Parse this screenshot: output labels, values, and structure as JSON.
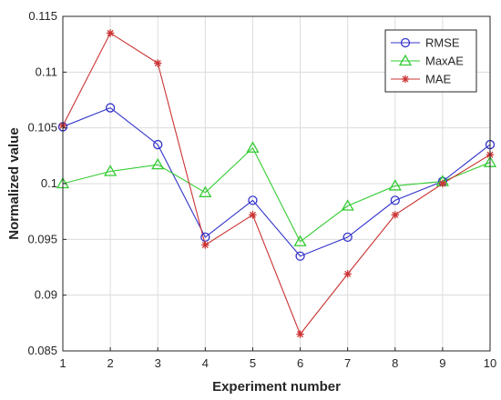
{
  "chart_data": {
    "type": "line",
    "title": "",
    "xlabel": "Experiment number",
    "ylabel": "Normalized value",
    "x": [
      1,
      2,
      3,
      4,
      5,
      6,
      7,
      8,
      9,
      10
    ],
    "xlim": [
      1,
      10
    ],
    "ylim": [
      0.085,
      0.115
    ],
    "xticks": [
      "1",
      "2",
      "3",
      "4",
      "5",
      "6",
      "7",
      "8",
      "9",
      "10"
    ],
    "yticks": [
      "0.085",
      "0.09",
      "0.095",
      "0.1",
      "0.105",
      "0.11",
      "0.115"
    ],
    "grid": true,
    "legend_position": "top-right",
    "series": [
      {
        "name": "RMSE",
        "color": "#3333cc",
        "marker": "circle",
        "values": [
          0.1051,
          0.1068,
          0.1035,
          0.0952,
          0.0985,
          0.0935,
          0.0952,
          0.0985,
          0.1002,
          0.1035
        ]
      },
      {
        "name": "MaxAE",
        "color": "#33cc33",
        "marker": "triangle",
        "values": [
          0.1,
          0.1011,
          0.1017,
          0.0992,
          0.1032,
          0.0948,
          0.098,
          0.0998,
          0.1002,
          0.1019
        ]
      },
      {
        "name": "MAE",
        "color": "#cc3333",
        "marker": "asterisk",
        "values": [
          0.1052,
          0.1135,
          0.1108,
          0.0945,
          0.0972,
          0.0865,
          0.0919,
          0.0972,
          0.1,
          0.1026
        ]
      }
    ]
  }
}
